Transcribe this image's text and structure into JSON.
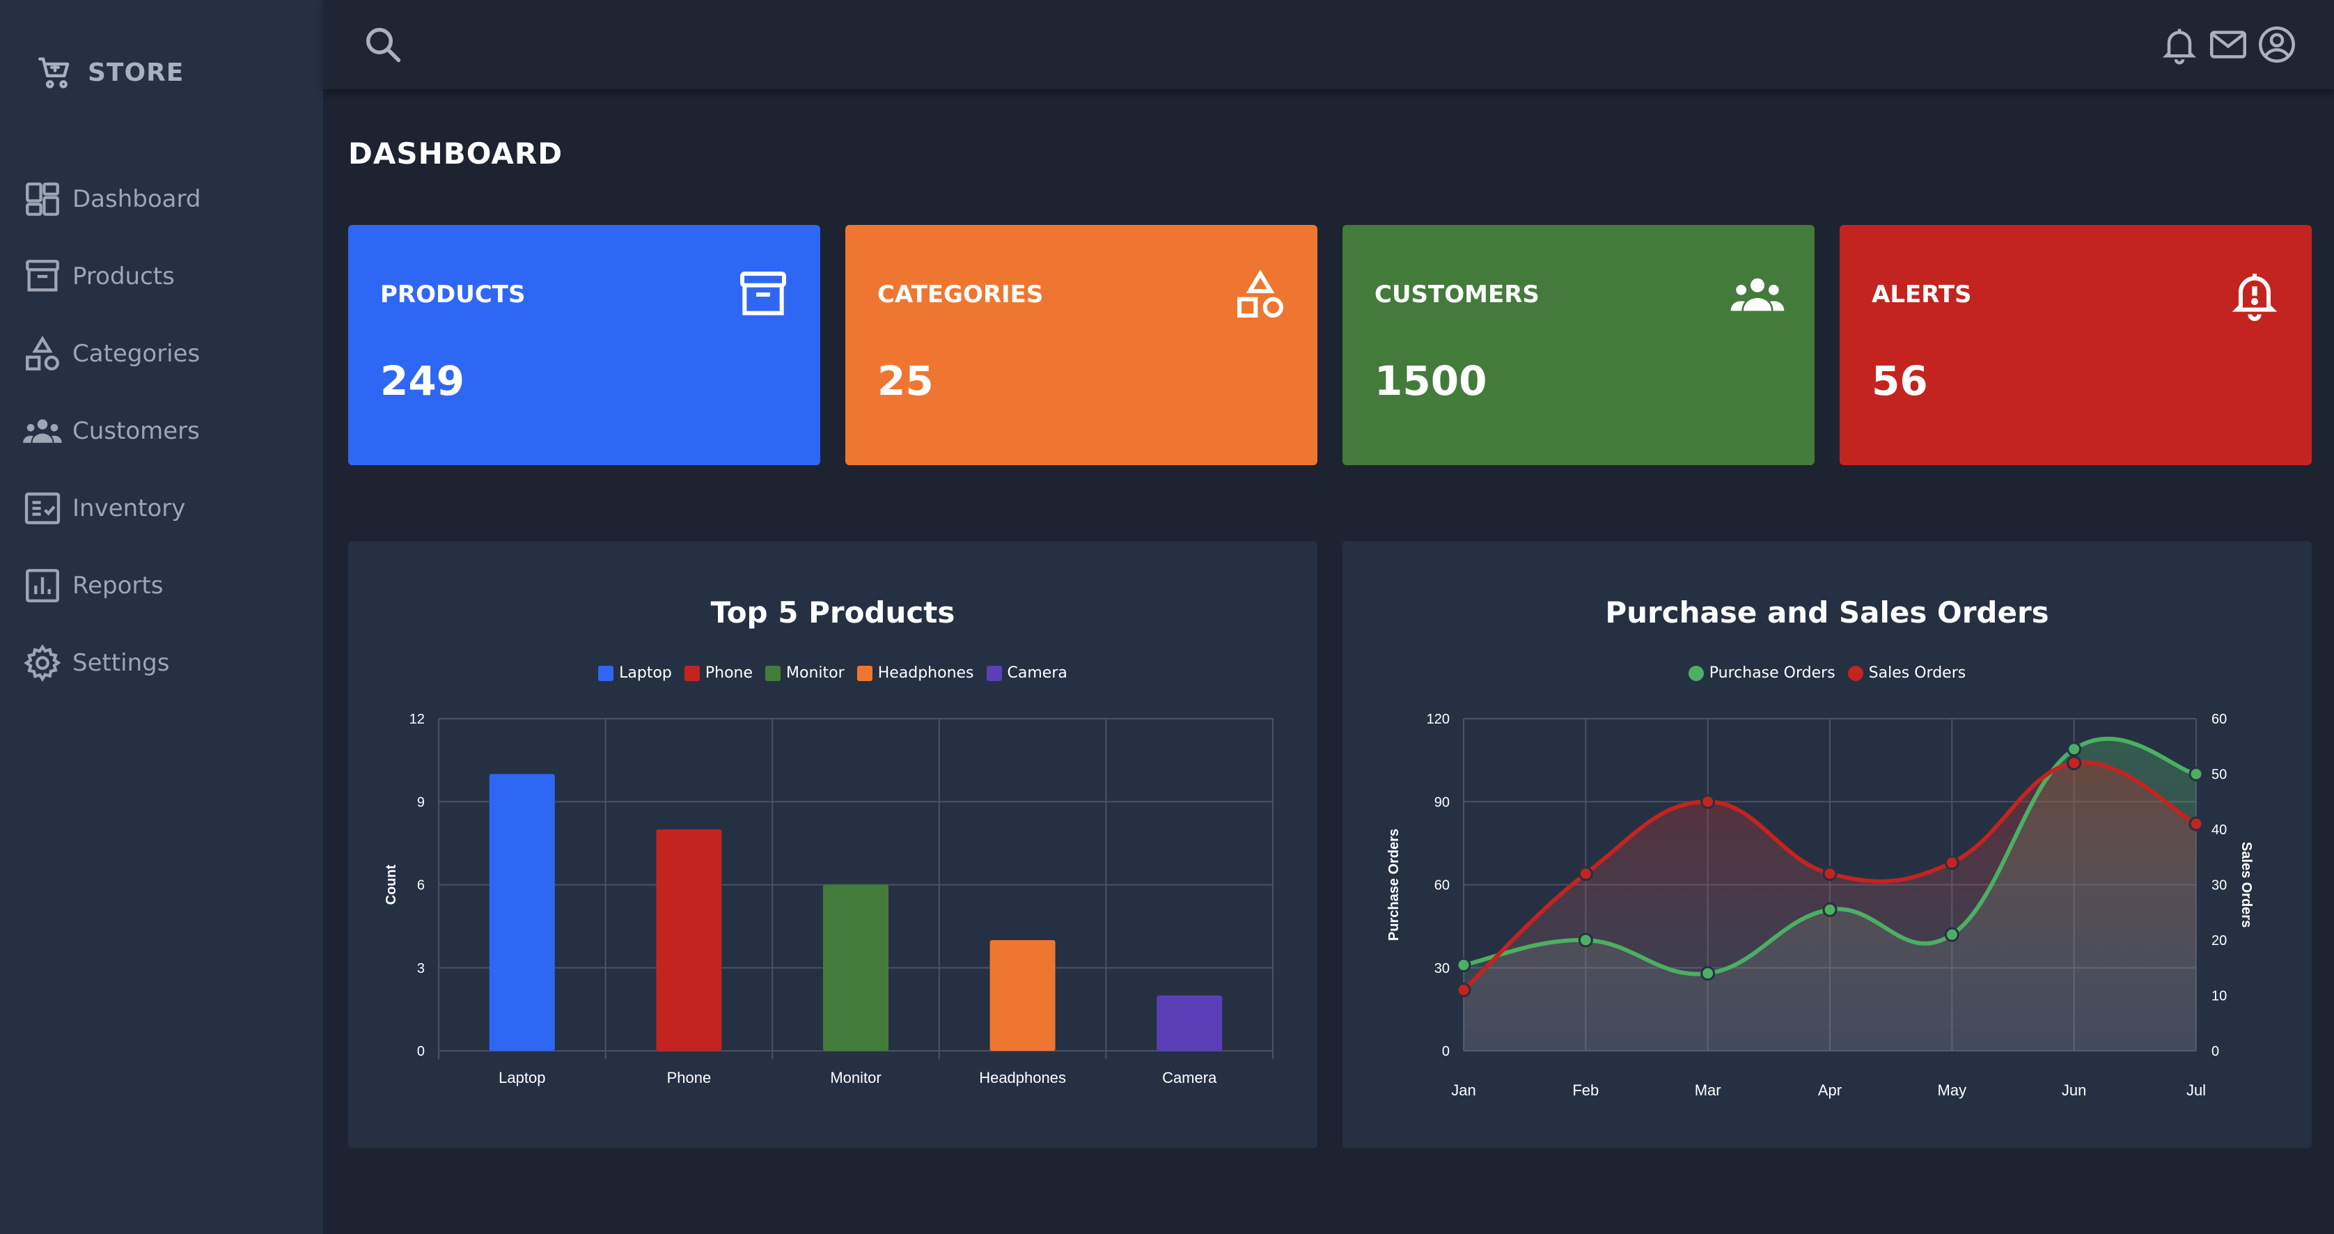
{
  "brand": {
    "name": "STORE",
    "icon": "cart-icon"
  },
  "sidebar": {
    "items": [
      {
        "label": "Dashboard",
        "icon": "dashboard-icon"
      },
      {
        "label": "Products",
        "icon": "archive-icon"
      },
      {
        "label": "Categories",
        "icon": "shapes-icon"
      },
      {
        "label": "Customers",
        "icon": "people-icon"
      },
      {
        "label": "Inventory",
        "icon": "checklist-icon"
      },
      {
        "label": "Reports",
        "icon": "bar-chart-icon"
      },
      {
        "label": "Settings",
        "icon": "gear-icon"
      }
    ]
  },
  "header": {
    "icons": [
      "search-icon",
      "bell-icon",
      "mail-icon",
      "account-icon"
    ]
  },
  "page": {
    "title": "DASHBOARD"
  },
  "cards": [
    {
      "title": "PRODUCTS",
      "value": "249",
      "color": "#2f67f5",
      "icon": "archive-icon"
    },
    {
      "title": "CATEGORIES",
      "value": "25",
      "color": "#ef7630",
      "icon": "shapes-icon"
    },
    {
      "title": "CUSTOMERS",
      "value": "1500",
      "color": "#437b3b",
      "icon": "people-icon"
    },
    {
      "title": "ALERTS",
      "value": "56",
      "color": "#c3241f",
      "icon": "bell-alert-icon"
    }
  ],
  "chart_data": [
    {
      "type": "bar",
      "title": "Top 5 Products",
      "categories": [
        "Laptop",
        "Phone",
        "Monitor",
        "Headphones",
        "Camera"
      ],
      "values": [
        10,
        8,
        6,
        4,
        2
      ],
      "colors": [
        "#2f67f5",
        "#c3241f",
        "#437b3b",
        "#ef7630",
        "#5b3fb6"
      ],
      "legend": [
        "Laptop",
        "Phone",
        "Monitor",
        "Headphones",
        "Camera"
      ],
      "ylabel": "Count",
      "ylim": [
        0,
        12
      ],
      "yticks": [
        "0",
        "3",
        "6",
        "9",
        "12"
      ],
      "grid": true,
      "legend_position": "top"
    },
    {
      "type": "area",
      "title": "Purchase and Sales Orders",
      "x": [
        "Jan",
        "Feb",
        "Mar",
        "Apr",
        "May",
        "Jun",
        "Jul"
      ],
      "series": [
        {
          "name": "Purchase Orders",
          "axis": "left",
          "color": "#4caf63",
          "values": [
            31,
            40,
            28,
            51,
            42,
            109,
            100
          ]
        },
        {
          "name": "Sales Orders",
          "axis": "right",
          "color": "#c3241f",
          "values": [
            11,
            32,
            45,
            32,
            34,
            52,
            41
          ]
        }
      ],
      "ylabel_left": "Purchase Orders",
      "ylabel_right": "Sales Orders",
      "ylim_left": [
        0,
        120
      ],
      "ylim_right": [
        0,
        60
      ],
      "yticks_left": [
        "0",
        "30",
        "60",
        "90",
        "120"
      ],
      "yticks_right": [
        "0",
        "10",
        "20",
        "30",
        "40",
        "50",
        "60"
      ],
      "grid": true,
      "legend_position": "top"
    }
  ]
}
